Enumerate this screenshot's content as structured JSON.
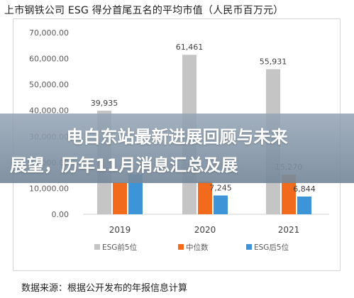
{
  "header": {
    "title": "上市钢铁公司 ESG 得分首尾五名的平均市值（人民币百万元）"
  },
  "overlay": {
    "line1": "电白东站最新进展回顾与未来",
    "line2": "展望，历年11月消息汇总及展"
  },
  "footer": {
    "source": "数据来源：根据公开发布的年报信息计算"
  },
  "chart_data": {
    "type": "bar",
    "title": "上市钢铁公司 ESG 得分首尾五名的平均市值（人民币百万元）",
    "categories": [
      "2019",
      "2020",
      "2021"
    ],
    "y_ticks": [
      "0.00",
      "10,000.00",
      "20,000.00",
      "30,000.00",
      "40,000.00",
      "50,000.00",
      "60,000.00",
      "70,000.00"
    ],
    "ylim": [
      0,
      70000
    ],
    "grid": false,
    "legend_position": "bottom",
    "series": [
      {
        "name": "ESG前5位",
        "color": "#c5c5c5",
        "values": [
          39935,
          61461,
          55931
        ],
        "labels": [
          "39,935",
          "61,461",
          "55,931"
        ]
      },
      {
        "name": "中位数",
        "color": "#f26b1d",
        "values": [
          12200,
          12600,
          15270
        ],
        "labels": [
          "",
          "",
          "15,270"
        ]
      },
      {
        "name": "ESG后5位",
        "color": "#3d95d8",
        "values": [
          15400,
          7245,
          6844
        ],
        "labels": [
          "",
          "7,245",
          "6,844"
        ]
      }
    ]
  }
}
